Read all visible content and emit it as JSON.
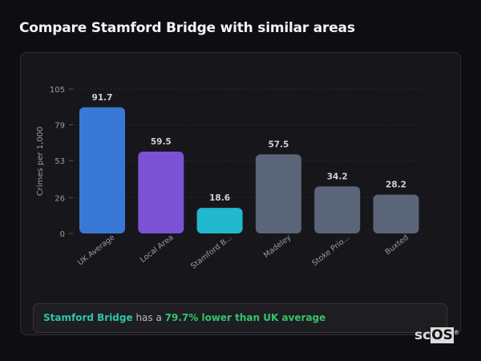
{
  "header": {
    "title": "Compare Stamford Bridge with similar areas"
  },
  "chart_data": {
    "type": "bar",
    "title": "",
    "xlabel": "",
    "ylabel": "Crimes per 1,000",
    "ylim": [
      0,
      105
    ],
    "yticks": [
      0,
      26,
      53,
      79,
      105
    ],
    "grid": true,
    "categories": [
      "UK Average",
      "Local Area",
      "Stamford B...",
      "Madeley",
      "Stoke Prio...",
      "Buxted"
    ],
    "values": [
      91.7,
      59.5,
      18.6,
      57.5,
      34.2,
      28.2
    ],
    "data_labels": [
      "91.7",
      "59.5",
      "18.6",
      "57.5",
      "34.2",
      "28.2"
    ],
    "colors": [
      "#3a78d8",
      "#7b52d4",
      "#22b8cf",
      "#5a6578",
      "#5a6578",
      "#5a6578"
    ]
  },
  "summary": {
    "area": "Stamford Bridge",
    "middle": " has a ",
    "comparison": "79.7% lower than UK average"
  },
  "logo": {
    "text_sc": "sc",
    "text_os": "OS",
    "mark": "®"
  }
}
